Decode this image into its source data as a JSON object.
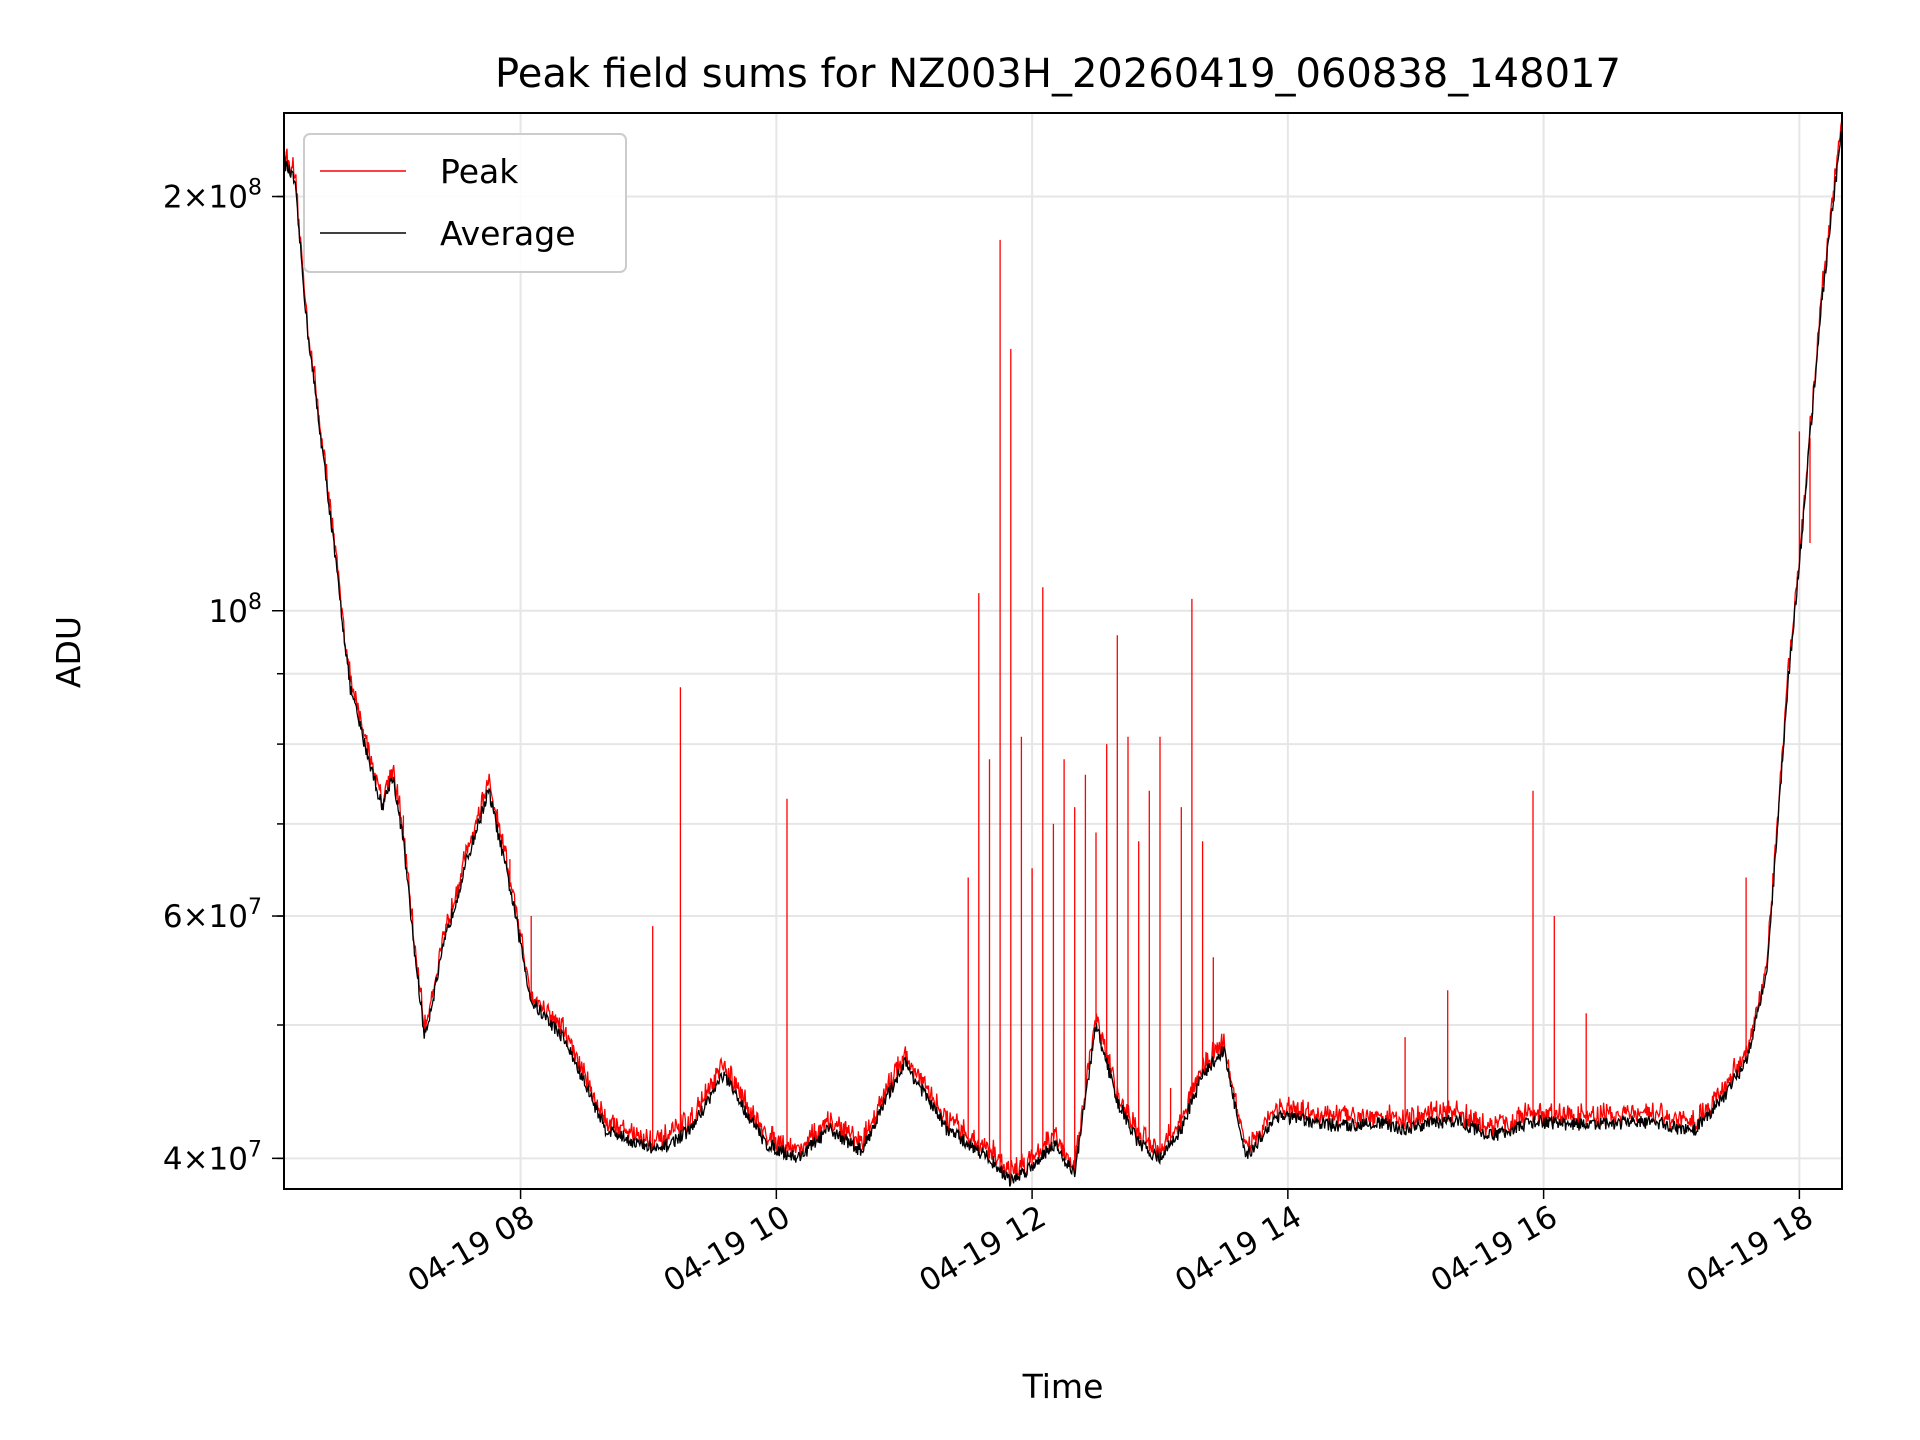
{
  "chart_data": {
    "type": "line",
    "title": "Peak field sums for NZ003H_20260419_060838_148017",
    "xlabel": "Time",
    "ylabel": "ADU",
    "y_scale": "log",
    "ylim": [
      38000000,
      230000000
    ],
    "xlim": [
      "04-19 06:09",
      "04-19 18:20"
    ],
    "grid": true,
    "legend": {
      "placement": "top-left",
      "entries": [
        "Peak",
        "Average"
      ]
    },
    "x_ticks": [
      "04-19 08",
      "04-19 10",
      "04-19 12",
      "04-19 14",
      "04-19 16",
      "04-19 18"
    ],
    "y_ticks_major": [
      {
        "value": 40000000,
        "mantissa": "4",
        "exp": "7"
      },
      {
        "value": 60000000,
        "mantissa": "6",
        "exp": "7"
      },
      {
        "value": 100000000,
        "mantissa": "",
        "exp": "8"
      },
      {
        "value": 200000000,
        "mantissa": "2",
        "exp": "8"
      }
    ],
    "series": [
      {
        "name": "Average",
        "color": "#000000",
        "x": [
          "06:09",
          "06:14",
          "06:20",
          "06:30",
          "06:40",
          "06:45",
          "06:55",
          "07:00",
          "07:05",
          "07:10",
          "07:15",
          "07:25",
          "07:35",
          "07:45",
          "07:55",
          "08:05",
          "08:20",
          "08:40",
          "08:55",
          "09:05",
          "09:20",
          "09:35",
          "09:55",
          "10:10",
          "10:25",
          "10:40",
          "11:00",
          "11:20",
          "11:40",
          "11:50",
          "12:00",
          "12:10",
          "12:20",
          "12:30",
          "12:40",
          "12:50",
          "13:00",
          "13:10",
          "13:20",
          "13:30",
          "13:40",
          "13:55",
          "14:10",
          "14:25",
          "14:40",
          "14:55",
          "15:05",
          "15:20",
          "15:35",
          "15:55",
          "16:10",
          "16:25",
          "16:40",
          "16:55",
          "17:10",
          "17:25",
          "17:35",
          "17:45",
          "17:55",
          "18:00",
          "18:10",
          "18:20"
        ],
        "values": [
          212000000,
          205000000,
          160000000,
          120000000,
          88000000,
          82000000,
          72000000,
          76000000,
          68000000,
          57000000,
          49000000,
          58000000,
          66000000,
          74000000,
          63000000,
          52000000,
          49000000,
          42000000,
          41000000,
          40500000,
          42000000,
          46000000,
          41000000,
          40000000,
          42000000,
          40500000,
          47000000,
          42000000,
          40000000,
          38500000,
          39500000,
          41000000,
          39000000,
          50000000,
          44000000,
          41000000,
          40000000,
          42000000,
          46000000,
          48000000,
          40000000,
          43000000,
          42500000,
          42200000,
          42500000,
          42000000,
          42400000,
          42600000,
          41500000,
          42500000,
          42400000,
          42300000,
          42500000,
          42400000,
          41800000,
          44500000,
          47000000,
          55000000,
          90000000,
          108000000,
          165000000,
          225000000
        ]
      },
      {
        "name": "Peak",
        "color": "#ff0000",
        "x": [
          "07:05",
          "07:55",
          "08:05",
          "09:02",
          "09:15",
          "10:05",
          "11:30",
          "11:35",
          "11:40",
          "11:45",
          "11:50",
          "11:55",
          "12:00",
          "12:05",
          "12:10",
          "12:15",
          "12:20",
          "12:25",
          "12:30",
          "12:35",
          "12:40",
          "12:45",
          "12:50",
          "12:55",
          "13:00",
          "13:05",
          "13:10",
          "13:15",
          "13:20",
          "13:25",
          "14:55",
          "15:15",
          "15:55",
          "16:05",
          "16:20",
          "17:35",
          "18:00",
          "18:05"
        ],
        "values": [
          71000000,
          66000000,
          60000000,
          59000000,
          88000000,
          73000000,
          64000000,
          103000000,
          78000000,
          186000000,
          155000000,
          81000000,
          65000000,
          104000000,
          70000000,
          78000000,
          72000000,
          76000000,
          69000000,
          80000000,
          96000000,
          81000000,
          68000000,
          74000000,
          81000000,
          45000000,
          72000000,
          102000000,
          68000000,
          56000000,
          49000000,
          53000000,
          74000000,
          60000000,
          51000000,
          64000000,
          135000000,
          112000000
        ]
      }
    ]
  }
}
